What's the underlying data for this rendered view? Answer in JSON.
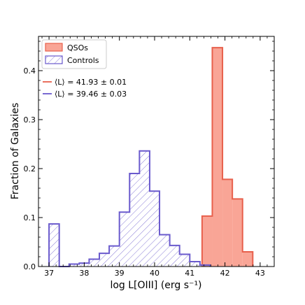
{
  "chart_data": {
    "type": "bar",
    "xlabel": "log L[OIII] (erg s⁻¹)",
    "ylabel": "Fraction of Galaxies",
    "xlim": [
      36.7,
      43.4
    ],
    "ylim": [
      0,
      0.47
    ],
    "xticks": [
      37,
      38,
      39,
      40,
      41,
      42,
      43
    ],
    "yticks": [
      0.0,
      0.1,
      0.2,
      0.3,
      0.4
    ],
    "ytick_labels": [
      "0.0",
      "0.1",
      "0.2",
      "0.3",
      "0.4"
    ],
    "grid": false,
    "legend": {
      "placement": "top-left",
      "entries": [
        "QSOs",
        "Controls"
      ]
    },
    "annotations": [
      {
        "text": "⟨L⟩ = 41.93 ± 0.01",
        "color": "#e8604c"
      },
      {
        "text": "⟨L⟩ = 39.46 ± 0.03",
        "color": "#6a5acd"
      }
    ],
    "series": [
      {
        "name": "QSOs",
        "style": "filled",
        "fill_color": "#f9a596",
        "edge_color": "#e8604c",
        "edges": [
          41.35,
          41.64,
          41.93,
          42.21,
          42.5,
          42.79
        ],
        "values": [
          0.103,
          0.447,
          0.178,
          0.138,
          0.03
        ]
      },
      {
        "name": "Controls",
        "style": "hatched",
        "edge_color": "#6a5acd",
        "edges": [
          37.0,
          37.29,
          37.57,
          37.86,
          38.14,
          38.43,
          38.71,
          39.0,
          39.29,
          39.57,
          39.86,
          40.14,
          40.43,
          40.71,
          41.0,
          41.29,
          41.57
        ],
        "values": [
          0.087,
          0.0,
          0.005,
          0.007,
          0.015,
          0.027,
          0.042,
          0.111,
          0.19,
          0.236,
          0.154,
          0.065,
          0.043,
          0.025,
          0.01,
          0.003
        ]
      }
    ]
  }
}
